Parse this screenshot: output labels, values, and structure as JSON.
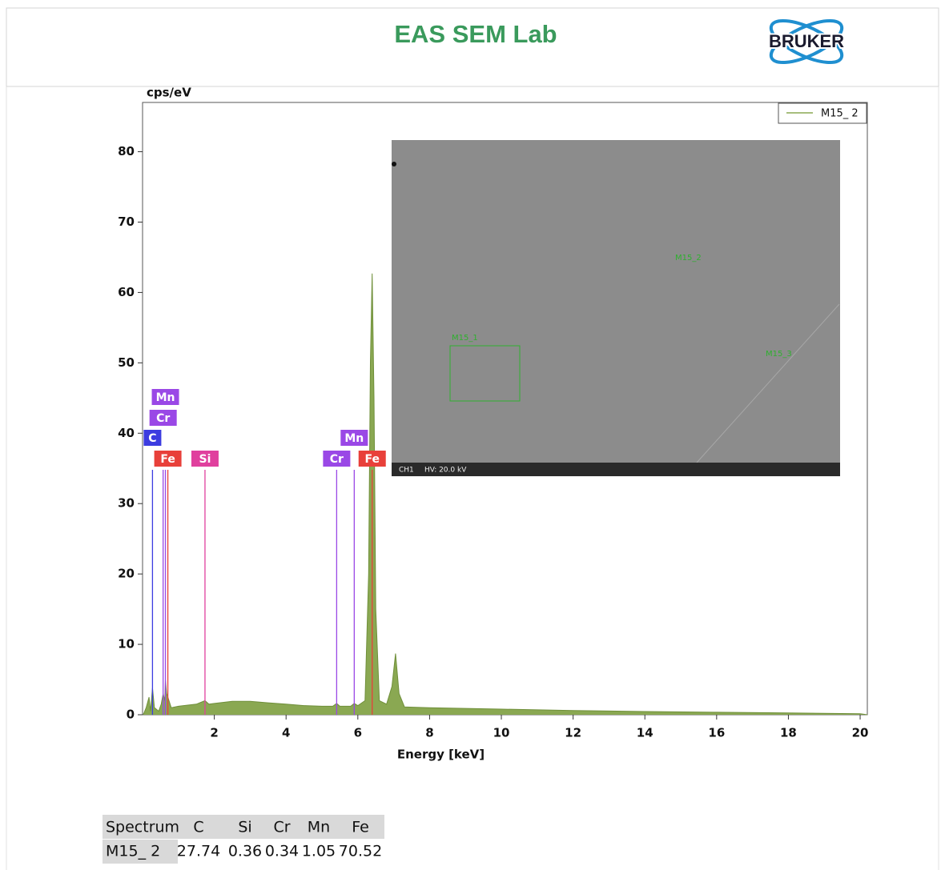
{
  "header": {
    "title": "EAS SEM Lab",
    "logo": "BRUKER"
  },
  "chart_data": {
    "type": "area",
    "y_label": "cps/eV",
    "x_label": "Energy [keV]",
    "xlim": [
      0,
      20.2
    ],
    "ylim": [
      0,
      87
    ],
    "xticks": [
      2,
      4,
      6,
      8,
      10,
      12,
      14,
      16,
      18,
      20
    ],
    "yticks": [
      0,
      10,
      20,
      30,
      40,
      50,
      60,
      70,
      80
    ],
    "x": [
      0.02,
      0.1,
      0.18,
      0.22,
      0.277,
      0.33,
      0.45,
      0.52,
      0.573,
      0.62,
      0.637,
      0.67,
      0.705,
      0.8,
      1.0,
      1.5,
      1.74,
      1.85,
      2.0,
      2.5,
      3.0,
      3.5,
      4.0,
      4.5,
      5.0,
      5.3,
      5.41,
      5.5,
      5.8,
      5.9,
      6.0,
      6.2,
      6.3,
      6.35,
      6.4,
      6.45,
      6.5,
      6.6,
      6.8,
      6.95,
      7.05,
      7.15,
      7.3,
      8.0,
      10.0,
      12.0,
      14.0,
      16.0,
      18.0,
      20.0,
      20.2
    ],
    "series": [
      {
        "name": "M15_ 2",
        "color": "#8aa852",
        "values": [
          0,
          1,
          2.5,
          0.5,
          3.8,
          1,
          0.5,
          1.5,
          3,
          2,
          5,
          3,
          2.5,
          1,
          1.2,
          1.5,
          2,
          1.5,
          1.6,
          1.9,
          1.9,
          1.7,
          1.5,
          1.3,
          1.2,
          1.2,
          1.6,
          1.2,
          1.2,
          1.6,
          1.3,
          2,
          20,
          50,
          62.7,
          45,
          15,
          2,
          1.5,
          4,
          8.7,
          3,
          1.1,
          1,
          0.8,
          0.6,
          0.45,
          0.35,
          0.25,
          0.15,
          0
        ]
      }
    ],
    "element_lines": [
      {
        "label": "C",
        "energy": 0.277,
        "color": "#3c3ce0"
      },
      {
        "label": "Cr",
        "energy": 0.573,
        "color": "#9a48e6"
      },
      {
        "label": "Mn",
        "energy": 0.637,
        "color": "#9a48e6"
      },
      {
        "label": "Fe",
        "energy": 0.705,
        "color": "#e8403a"
      },
      {
        "label": "Si",
        "energy": 1.74,
        "color": "#e0409e"
      },
      {
        "label": "Cr",
        "energy": 5.41,
        "color": "#9a48e6"
      },
      {
        "label": "Mn",
        "energy": 5.9,
        "color": "#9a48e6"
      },
      {
        "label": "Fe",
        "energy": 6.4,
        "color": "#e8403a"
      }
    ],
    "legend": "upper right"
  },
  "image": {
    "labels": [
      "M15_2",
      "M15_1",
      "M15_3"
    ],
    "channel": "CH1",
    "voltage": "HV: 20.0 kV"
  },
  "table": {
    "header": [
      "Spectrum",
      "C",
      "Si",
      "Cr",
      "Mn",
      "Fe"
    ],
    "rows": [
      [
        "M15_ 2",
        27.74,
        0.36,
        0.34,
        1.05,
        70.52
      ]
    ]
  }
}
